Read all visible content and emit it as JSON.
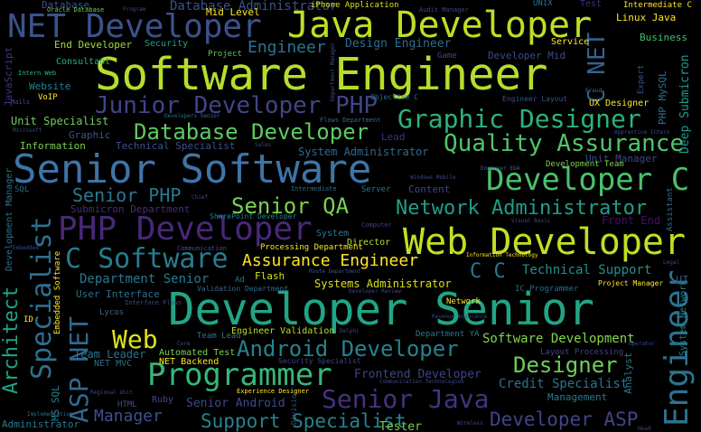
{
  "words": [
    {
      "text": "Software Engineer",
      "color": "#b5de2b"
    },
    {
      "text": "Developer Senior",
      "color": "#21a585"
    },
    {
      "text": "Senior Software",
      "color": "#3e74a7"
    },
    {
      "text": "Java Developer",
      "color": "#bddf26"
    },
    {
      "text": "NET Developer",
      "color": "#3b528b"
    },
    {
      "text": "Web Developer",
      "color": "#c2df23"
    },
    {
      "text": "PHP Developer",
      "color": "#482878"
    },
    {
      "text": "C Software",
      "color": "#287c8e"
    },
    {
      "text": "Programmer",
      "color": "#35b779"
    },
    {
      "text": "Developer C",
      "color": "#4ac16d"
    },
    {
      "text": "Graphic Designer",
      "color": "#2db27d"
    },
    {
      "text": "Quality Assurance",
      "color": "#52c569"
    },
    {
      "text": "Junior Developer PHP",
      "color": "#414487"
    },
    {
      "text": "Database Developer",
      "color": "#5ec962"
    },
    {
      "text": "Senior Java",
      "color": "#46327e"
    },
    {
      "text": "Android Developer",
      "color": "#26828e"
    },
    {
      "text": "Network Administrator",
      "color": "#1f9e89"
    },
    {
      "text": "Senior QA",
      "color": "#7ad151"
    },
    {
      "text": "Senior PHP",
      "color": "#2a788e"
    },
    {
      "text": "Support Specialist",
      "color": "#25848e"
    },
    {
      "text": "Designer",
      "color": "#6ece58"
    },
    {
      "text": "Developer ASP",
      "color": "#414487"
    },
    {
      "text": "Assurance Engineer",
      "color": "#fde725"
    },
    {
      "text": "Specialist",
      "color": "#2e6e8e"
    },
    {
      "text": "Engineer",
      "color": "#2c728e"
    },
    {
      "text": "Web",
      "color": "#dde318"
    },
    {
      "text": "ASP NET",
      "color": "#31688e"
    },
    {
      "text": "Architect",
      "color": "#20a486"
    },
    {
      "text": "C NET",
      "color": "#33638d"
    },
    {
      "text": "Manager",
      "color": "#3b528b"
    },
    {
      "text": "Technical Support",
      "color": "#21918c"
    },
    {
      "text": "Software Development",
      "color": "#84d44b"
    },
    {
      "text": "Frontend Developer",
      "color": "#404387"
    },
    {
      "text": "Credit Specialist",
      "color": "#2c728e"
    },
    {
      "text": "Senior Android",
      "color": "#3e4989"
    },
    {
      "text": "Department Senior",
      "color": "#2a788e"
    },
    {
      "text": "Systems Administrator",
      "color": "#d8e219"
    },
    {
      "text": "Design Engineer",
      "color": "#2e6d8e"
    },
    {
      "text": "Database Administrator",
      "color": "#3b528b"
    },
    {
      "text": "Submicron Department",
      "color": "#472d7b"
    },
    {
      "text": "System Administrator",
      "color": "#31688e"
    },
    {
      "text": "Team Leader",
      "color": "#2c728e"
    },
    {
      "text": "Deep Submicron",
      "color": "#1e9b8a"
    },
    {
      "text": "C C",
      "color": "#2a788e"
    },
    {
      "text": "Front End",
      "color": "#471164"
    },
    {
      "text": "Unit Specialist",
      "color": "#6ccd5a"
    },
    {
      "text": "Technical Specialist",
      "color": "#3b528b"
    },
    {
      "text": "End Developer",
      "color": "#a2da37"
    },
    {
      "text": "Developer Mid",
      "color": "#3e4a89"
    },
    {
      "text": "Linux Java",
      "color": "#fde725"
    },
    {
      "text": "Business",
      "color": "#44bf70"
    },
    {
      "text": "Mid Level",
      "color": "#fde725"
    },
    {
      "text": "Information",
      "color": "#7ad151"
    },
    {
      "text": "Unit Manager",
      "color": "#3e4989"
    },
    {
      "text": "Management",
      "color": "#2a788e"
    },
    {
      "text": "User Interface",
      "color": "#2e6e8e"
    },
    {
      "text": "Flash",
      "color": "#d2e21b"
    },
    {
      "text": "Network",
      "color": "#fde725"
    },
    {
      "text": "Content",
      "color": "#414487"
    },
    {
      "text": "Server",
      "color": "#2a788e"
    },
    {
      "text": "Security",
      "color": "#20a386"
    },
    {
      "text": "Consultant",
      "color": "#2ab07f"
    },
    {
      "text": "Website",
      "color": "#26828e"
    },
    {
      "text": "Graphic",
      "color": "#3b528b"
    },
    {
      "text": "Project",
      "color": "#5ec962"
    },
    {
      "text": "Game",
      "color": "#3e4a89"
    },
    {
      "text": "Service",
      "color": "#fde725"
    },
    {
      "text": "UX Designer",
      "color": "#fde725"
    },
    {
      "text": "Automated Test",
      "color": "#7ad151"
    },
    {
      "text": "NET Backend",
      "color": "#fde725"
    },
    {
      "text": "Engineer Validation",
      "color": "#bddf26"
    },
    {
      "text": "Director",
      "color": "#b5de2b"
    },
    {
      "text": "NET MVC",
      "color": "#2e6d8e"
    },
    {
      "text": "Ruby",
      "color": "#3e4989"
    },
    {
      "text": "Lycos",
      "color": "#31688e"
    },
    {
      "text": "Lead",
      "color": "#472d7b"
    },
    {
      "text": "VoIP",
      "color": "#fde725"
    },
    {
      "text": "SQL",
      "color": "#31688e"
    },
    {
      "text": "MS SQL",
      "color": "#26828e"
    },
    {
      "text": "Administrator",
      "color": "#2a788e"
    },
    {
      "text": "Development Manager",
      "color": "#2c728e"
    },
    {
      "text": "JavaScript",
      "color": "#46327e"
    },
    {
      "text": "ID",
      "color": "#fde725"
    },
    {
      "text": "UI",
      "color": "#3b528b"
    },
    {
      "text": "Analyst",
      "color": "#2a788e"
    },
    {
      "text": "Layout Processing",
      "color": "#414487"
    },
    {
      "text": "System Network",
      "color": "#25848e"
    },
    {
      "text": "PHP MySQL",
      "color": "#2c728e"
    },
    {
      "text": "Expert",
      "color": "#3b528b"
    },
    {
      "text": "Tester",
      "color": "#7ad151"
    },
    {
      "text": "Team Lead",
      "color": "#2a788e"
    },
    {
      "text": "Ad",
      "color": "#2e6e8e"
    },
    {
      "text": "HTML",
      "color": "#3b528b"
    },
    {
      "text": "Assistant",
      "color": "#31688e"
    },
    {
      "text": "Intermediate C",
      "color": "#fde725"
    },
    {
      "text": "Test",
      "color": "#482878"
    },
    {
      "text": "UNIX",
      "color": "#2e6e8e"
    },
    {
      "text": "Database",
      "color": "#3b528b"
    },
    {
      "text": "Audit Manager",
      "color": "#3e4989"
    },
    {
      "text": "Oracle Database",
      "color": "#6ccd5a"
    },
    {
      "text": "Program",
      "color": "#3e4989"
    },
    {
      "text": "Department Manager",
      "color": "#3b528b"
    },
    {
      "text": "Intern Web",
      "color": "#35b779"
    },
    {
      "text": "Mails",
      "color": "#3b528b"
    },
    {
      "text": "Microsoft",
      "color": "#3e4989"
    },
    {
      "text": "Developers Senior",
      "color": "#2c728e"
    },
    {
      "text": "Flows Department",
      "color": "#31688e"
    },
    {
      "text": "Objective C",
      "color": "#2e6e8e"
    },
    {
      "text": "Engineer Layout",
      "color": "#3b528b"
    },
    {
      "text": "Fraud",
      "color": "#26828e"
    },
    {
      "text": "Apprentice Intern",
      "color": "#3e4989"
    },
    {
      "text": "Development Team",
      "color": "#7ad151"
    },
    {
      "text": "Engineer EDA",
      "color": "#31688e"
    },
    {
      "text": "Windows Mobile",
      "color": "#3e4989"
    },
    {
      "text": "Intermediate",
      "color": "#2e6e8e"
    },
    {
      "text": "SharePoint Developer",
      "color": "#26828e"
    },
    {
      "text": "System",
      "color": "#2a788e"
    },
    {
      "text": "Computer",
      "color": "#414487"
    },
    {
      "text": "Visual Basic",
      "color": "#3e4989"
    },
    {
      "text": "Processing Department",
      "color": "#fde725"
    },
    {
      "text": "Information Technology",
      "color": "#fde725"
    },
    {
      "text": "Route Department",
      "color": "#3b528b"
    },
    {
      "text": "Validation Department",
      "color": "#31688e"
    },
    {
      "text": "Developer Review",
      "color": "#3e4989"
    },
    {
      "text": "IC Programmer",
      "color": "#31688e"
    },
    {
      "text": "Project Manager",
      "color": "#fde725"
    },
    {
      "text": "Legal",
      "color": "#3e4989"
    },
    {
      "text": "Interface Flows",
      "color": "#3e4989"
    },
    {
      "text": "Revenue Assurance",
      "color": "#3e4989"
    },
    {
      "text": "Department YA",
      "color": "#2a788e"
    },
    {
      "text": "Security Specialist",
      "color": "#3e4989"
    },
    {
      "text": "Experience Designer",
      "color": "#fde725"
    },
    {
      "text": "Operator",
      "color": "#3e4989"
    },
    {
      "text": "Communication Technologies",
      "color": "#3e4989"
    },
    {
      "text": "Regional Unit",
      "color": "#3e4989"
    },
    {
      "text": "Implementation",
      "color": "#2e6e8e"
    },
    {
      "text": "Wireless",
      "color": "#3e4989"
    },
    {
      "text": "iPhone Application",
      "color": "#d8e219"
    },
    {
      "text": "Communication",
      "color": "#3b528b"
    },
    {
      "text": "Embedded Software",
      "color": "#fde725"
    },
    {
      "text": "Embedded",
      "color": "#3e4989"
    },
    {
      "text": "Division",
      "color": "#3e4989"
    },
    {
      "text": "Sales",
      "color": "#3e4989"
    },
    {
      "text": "Chief",
      "color": "#3e4989"
    },
    {
      "text": "Core",
      "color": "#3b528b"
    },
    {
      "text": "Delphi",
      "color": "#3e4989"
    },
    {
      "text": "Head",
      "color": "#3e4989"
    }
  ]
}
